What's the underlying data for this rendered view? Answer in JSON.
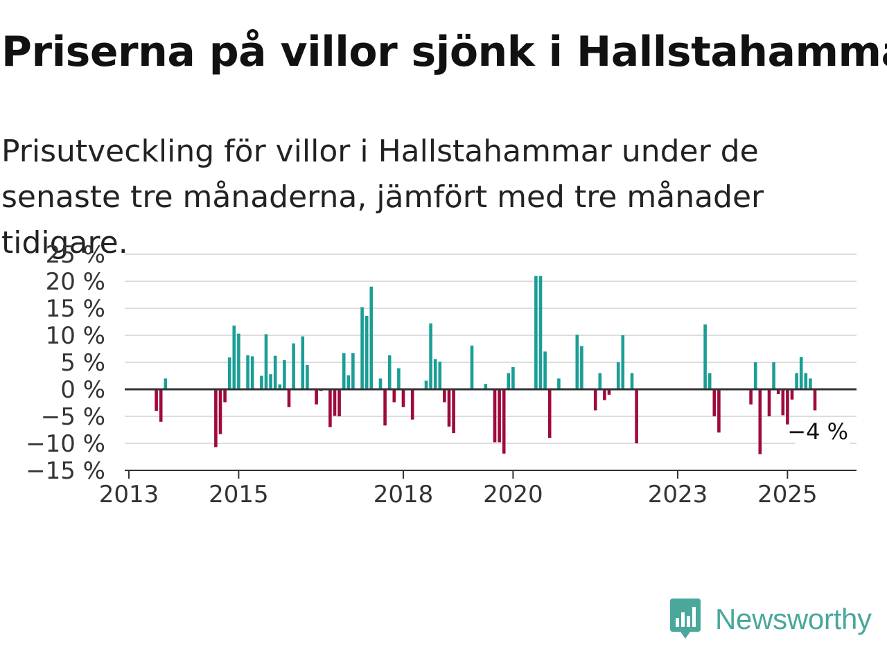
{
  "header": {
    "title": "Priserna på villor sjönk i Hallstahammar",
    "subtitle": "Prisutveckling för villor i Hallstahammar under de senaste tre månaderna, jämfört med tre månader tidigare."
  },
  "brand": {
    "name": "Newsworthy",
    "logo_icon": "bar-chart-speech-bubble-icon",
    "color": "#4aa79c"
  },
  "colors": {
    "positive": "#1a9e96",
    "negative": "#9e0a3c",
    "grid": "#dddddd",
    "axis": "#333333"
  },
  "chart_data": {
    "type": "bar",
    "title": "Priserna på villor sjönk i Hallstahammar",
    "subtitle": "Prisutveckling för villor i Hallstahammar under de senaste tre månaderna, jämfört med tre månader tidigare.",
    "xlabel": "",
    "ylabel": "",
    "y_unit": "%",
    "ylim": [
      -15,
      25
    ],
    "y_ticks": [
      25,
      20,
      15,
      10,
      5,
      0,
      -5,
      -10,
      -15
    ],
    "y_tick_labels": [
      "25 %",
      "20 %",
      "15 %",
      "10 %",
      "5 %",
      "0 %",
      "−5 %",
      "−10 %",
      "−15 %"
    ],
    "x_range": [
      "2013-01",
      "2026-04"
    ],
    "x_ticks": [
      "2013",
      "2015",
      "2018",
      "2020",
      "2023",
      "2025"
    ],
    "grid": true,
    "last_value_label": "−4 %",
    "values": [
      {
        "x": "2013-07",
        "y": -4
      },
      {
        "x": "2013-08",
        "y": -6
      },
      {
        "x": "2013-09",
        "y": 2
      },
      {
        "x": "2014-08",
        "y": -10.7
      },
      {
        "x": "2014-09",
        "y": -8.3
      },
      {
        "x": "2014-10",
        "y": -2.4
      },
      {
        "x": "2014-11",
        "y": 5.9
      },
      {
        "x": "2014-12",
        "y": 11.8
      },
      {
        "x": "2015-01",
        "y": 10.3
      },
      {
        "x": "2015-03",
        "y": 6.3
      },
      {
        "x": "2015-04",
        "y": 6.1
      },
      {
        "x": "2015-06",
        "y": 2.5
      },
      {
        "x": "2015-07",
        "y": 10.2
      },
      {
        "x": "2015-08",
        "y": 2.8
      },
      {
        "x": "2015-09",
        "y": 6.2
      },
      {
        "x": "2015-10",
        "y": 0.9
      },
      {
        "x": "2015-11",
        "y": 5.4
      },
      {
        "x": "2015-12",
        "y": -3.3
      },
      {
        "x": "2016-01",
        "y": 8.5
      },
      {
        "x": "2016-03",
        "y": 9.8
      },
      {
        "x": "2016-04",
        "y": 4.5
      },
      {
        "x": "2016-06",
        "y": -2.8
      },
      {
        "x": "2016-07",
        "y": -0.3
      },
      {
        "x": "2016-09",
        "y": -7
      },
      {
        "x": "2016-10",
        "y": -4.9
      },
      {
        "x": "2016-11",
        "y": -5
      },
      {
        "x": "2016-12",
        "y": 6.7
      },
      {
        "x": "2017-01",
        "y": 2.6
      },
      {
        "x": "2017-02",
        "y": 6.7
      },
      {
        "x": "2017-04",
        "y": 15.2
      },
      {
        "x": "2017-05",
        "y": 13.6
      },
      {
        "x": "2017-06",
        "y": 19
      },
      {
        "x": "2017-08",
        "y": 2
      },
      {
        "x": "2017-09",
        "y": -6.7
      },
      {
        "x": "2017-10",
        "y": 6.3
      },
      {
        "x": "2017-11",
        "y": -2.4
      },
      {
        "x": "2017-12",
        "y": 3.9
      },
      {
        "x": "2018-01",
        "y": -3.3
      },
      {
        "x": "2018-03",
        "y": -5.6
      },
      {
        "x": "2018-06",
        "y": 1.6
      },
      {
        "x": "2018-07",
        "y": 12.2
      },
      {
        "x": "2018-08",
        "y": 5.6
      },
      {
        "x": "2018-09",
        "y": 5.1
      },
      {
        "x": "2018-10",
        "y": -2.4
      },
      {
        "x": "2018-11",
        "y": -6.9
      },
      {
        "x": "2018-12",
        "y": -8.1
      },
      {
        "x": "2019-04",
        "y": 8.1
      },
      {
        "x": "2019-07",
        "y": 1
      },
      {
        "x": "2019-09",
        "y": -9.8
      },
      {
        "x": "2019-10",
        "y": -9.8
      },
      {
        "x": "2019-11",
        "y": -11.9
      },
      {
        "x": "2019-12",
        "y": 3
      },
      {
        "x": "2020-01",
        "y": 4.1
      },
      {
        "x": "2020-06",
        "y": 21
      },
      {
        "x": "2020-07",
        "y": 21
      },
      {
        "x": "2020-08",
        "y": 7
      },
      {
        "x": "2020-09",
        "y": -9
      },
      {
        "x": "2020-11",
        "y": 2
      },
      {
        "x": "2021-03",
        "y": 10.1
      },
      {
        "x": "2021-04",
        "y": 8
      },
      {
        "x": "2021-07",
        "y": -3.9
      },
      {
        "x": "2021-08",
        "y": 3
      },
      {
        "x": "2021-09",
        "y": -2
      },
      {
        "x": "2021-10",
        "y": -1
      },
      {
        "x": "2021-12",
        "y": 5
      },
      {
        "x": "2022-01",
        "y": 10
      },
      {
        "x": "2022-03",
        "y": 3
      },
      {
        "x": "2022-04",
        "y": -10
      },
      {
        "x": "2023-07",
        "y": 12
      },
      {
        "x": "2023-08",
        "y": 3
      },
      {
        "x": "2023-09",
        "y": -5
      },
      {
        "x": "2023-10",
        "y": -8
      },
      {
        "x": "2024-05",
        "y": -2.8
      },
      {
        "x": "2024-06",
        "y": 5
      },
      {
        "x": "2024-07",
        "y": -12
      },
      {
        "x": "2024-09",
        "y": -5
      },
      {
        "x": "2024-10",
        "y": 5
      },
      {
        "x": "2024-11",
        "y": -0.9
      },
      {
        "x": "2024-12",
        "y": -4.8
      },
      {
        "x": "2025-01",
        "y": -6.5
      },
      {
        "x": "2025-02",
        "y": -1.9
      },
      {
        "x": "2025-03",
        "y": 3
      },
      {
        "x": "2025-04",
        "y": 6
      },
      {
        "x": "2025-05",
        "y": 3
      },
      {
        "x": "2025-06",
        "y": 2
      },
      {
        "x": "2025-07",
        "y": -3.9
      }
    ]
  }
}
